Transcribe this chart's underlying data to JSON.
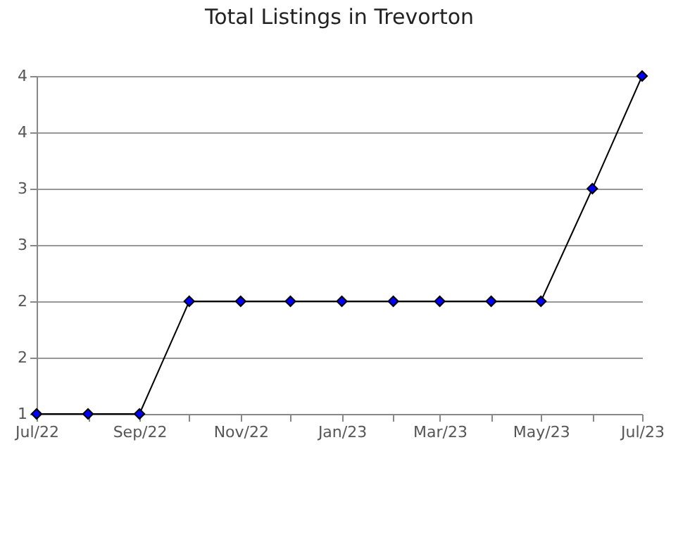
{
  "chart_data": {
    "type": "line",
    "title": "Total Listings in Trevorton",
    "x": [
      "2022-07",
      "2022-08",
      "2022-09",
      "2022-10",
      "2022-11",
      "2022-12",
      "2023-01",
      "2023-02",
      "2023-03",
      "2023-04",
      "2023-05",
      "2023-06",
      "2023-07"
    ],
    "series": [
      {
        "color": "#0000ff",
        "values": [
          1,
          1,
          1,
          2,
          2,
          2,
          2,
          2,
          2,
          2,
          2,
          3,
          4
        ]
      }
    ],
    "xlim": [
      "2022-07",
      "2023-07"
    ],
    "xticks": [
      {
        "value": "2022-07",
        "label": "Jul/22"
      },
      {
        "value": "2022-08",
        "label": null
      },
      {
        "value": "2022-09",
        "label": "Sep/22"
      },
      {
        "value": "2022-10",
        "label": null
      },
      {
        "value": "2022-11",
        "label": "Nov/22"
      },
      {
        "value": "2022-12",
        "label": null
      },
      {
        "value": "2023-01",
        "label": "Jan/23"
      },
      {
        "value": "2023-02",
        "label": null
      },
      {
        "value": "2023-03",
        "label": "Mar/23"
      },
      {
        "value": "2023-04",
        "label": null
      },
      {
        "value": "2023-05",
        "label": "May/23"
      },
      {
        "value": "2023-06",
        "label": null
      },
      {
        "value": "2023-07",
        "label": "Jul/23"
      }
    ],
    "ylim": [
      1,
      4
    ],
    "yticks": [
      1,
      {
        "value": 1.5,
        "label": "2"
      },
      2,
      {
        "value": 2.5,
        "label": "3"
      },
      3,
      {
        "value": 3.5,
        "label": "4"
      },
      4
    ],
    "grid": "y",
    "marker": "diamond",
    "line_style": "solid"
  }
}
